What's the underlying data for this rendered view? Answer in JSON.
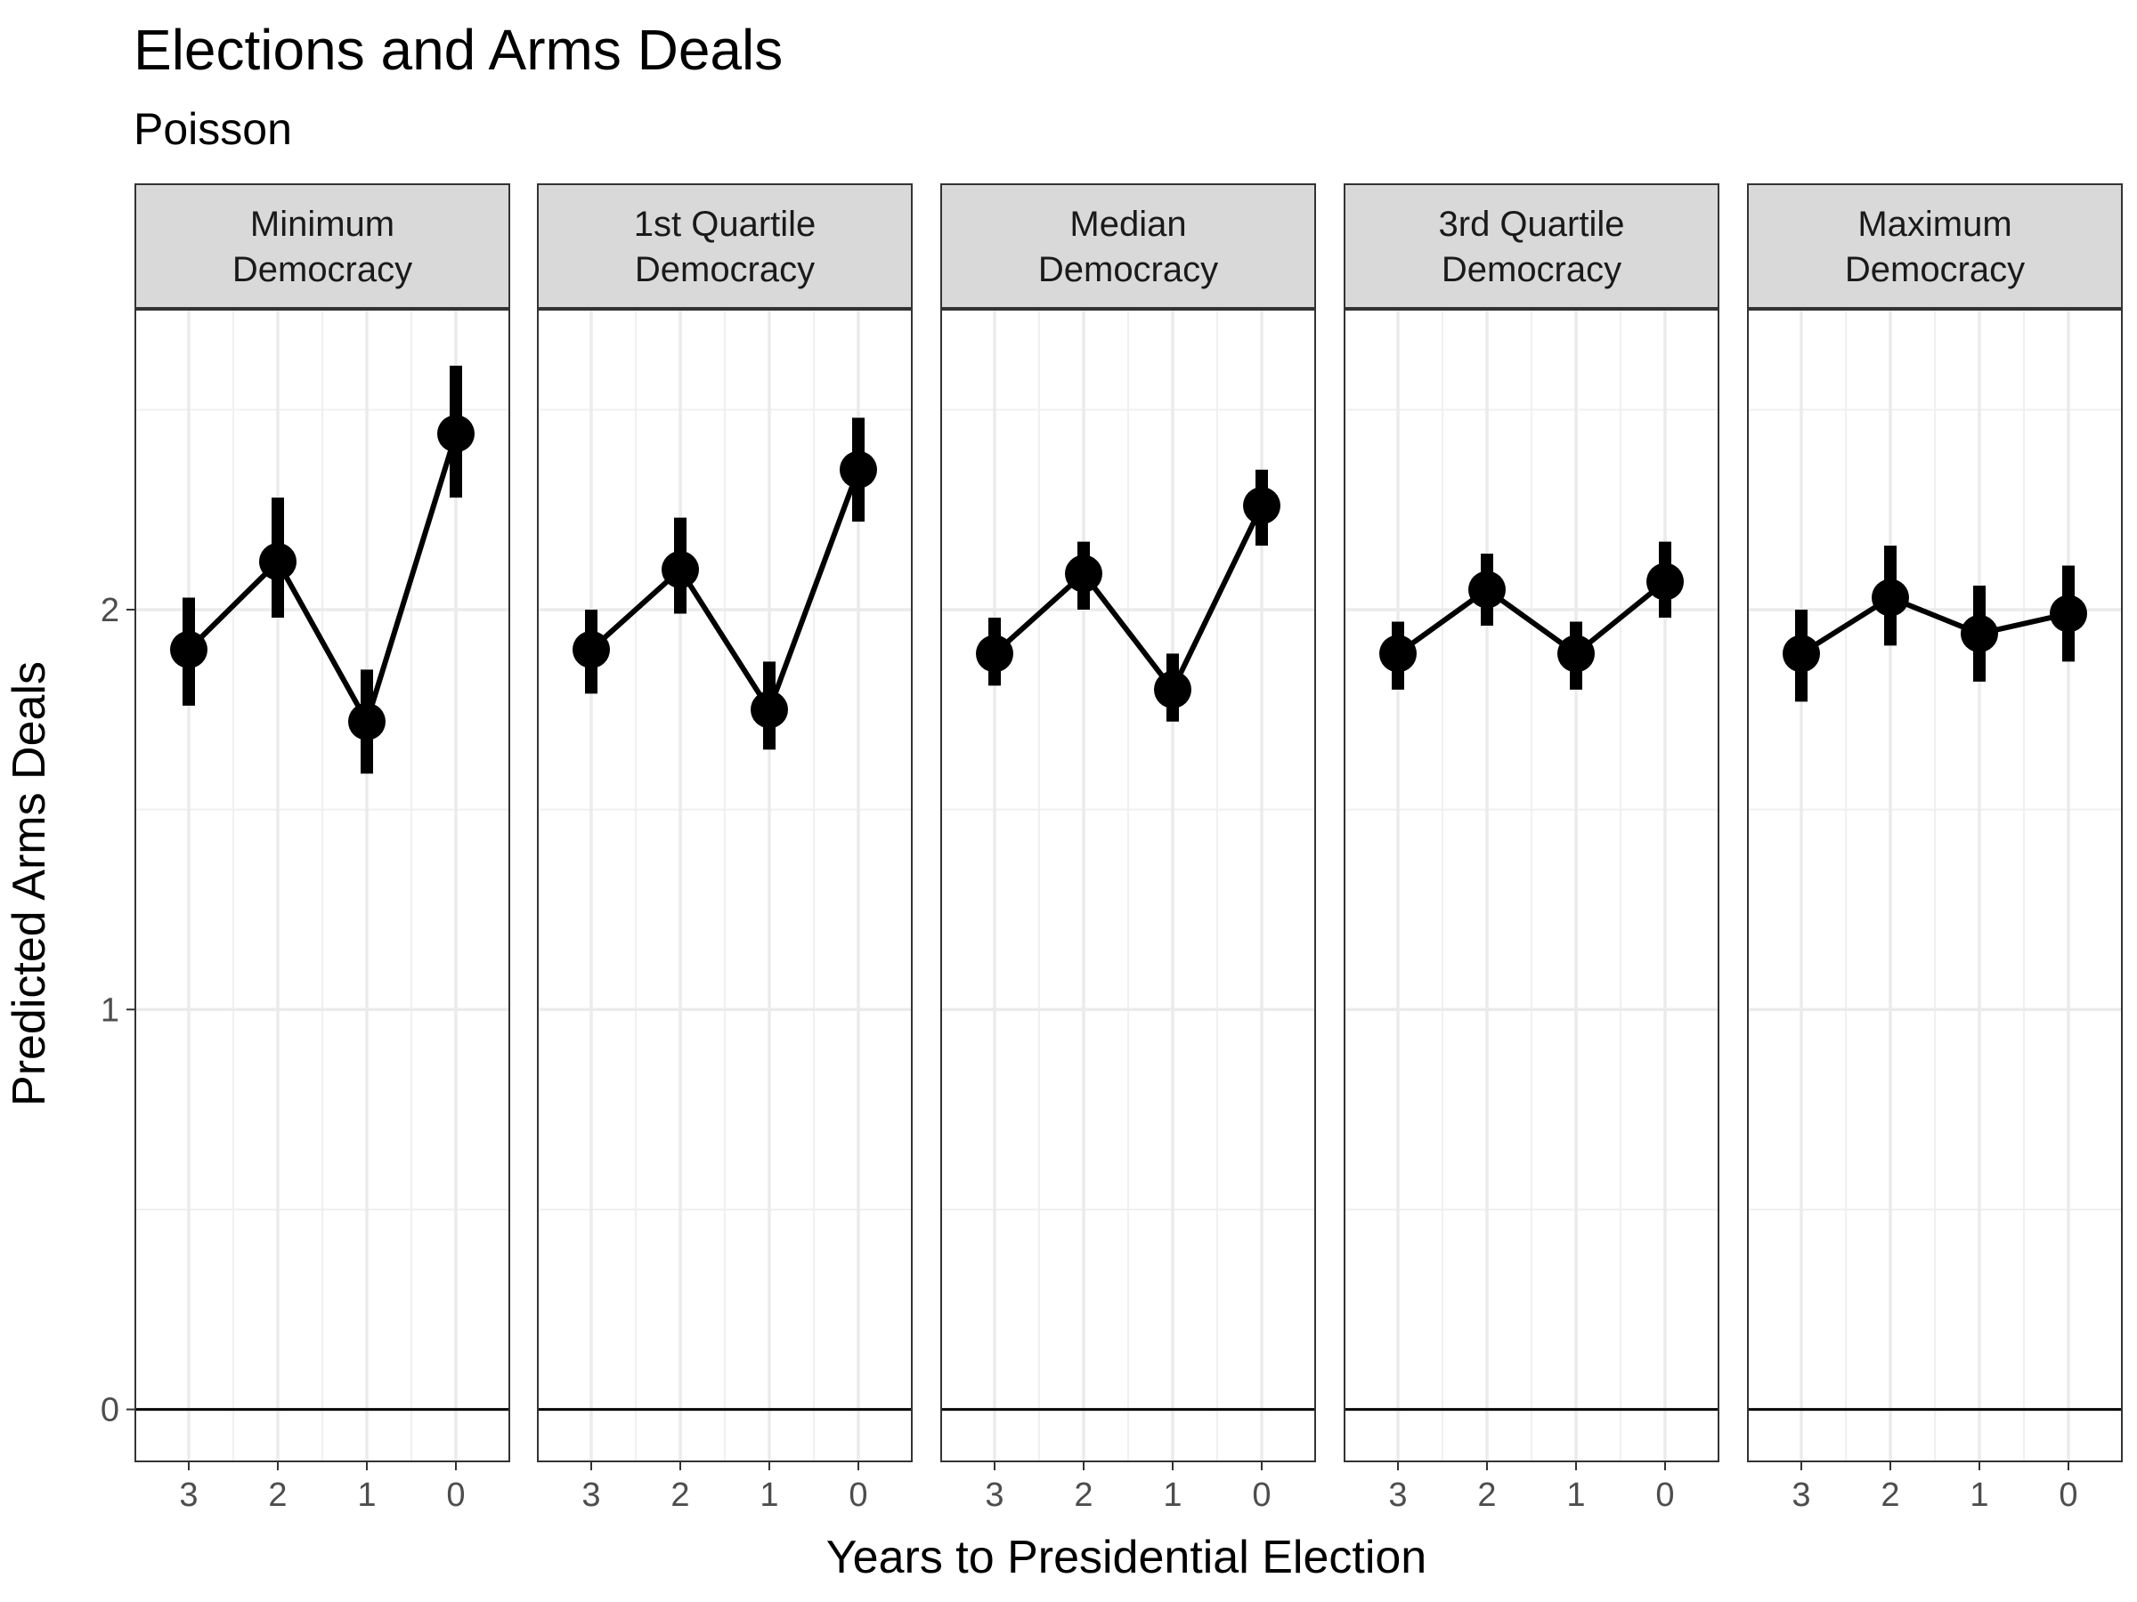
{
  "chart_data": {
    "type": "line",
    "title": "Elections and Arms Deals",
    "subtitle": "Poisson",
    "xlabel": "Years to Presidential Election",
    "ylabel": "Predicted Arms Deals",
    "x_categories": [
      "3",
      "2",
      "1",
      "0"
    ],
    "y_ticks": [
      0,
      1,
      2
    ],
    "ylim": [
      -0.13,
      2.75
    ],
    "reference_line_y": 0,
    "grid": true,
    "panels": [
      {
        "label_line1": "Minimum",
        "label_line2": "Democracy",
        "estimates": [
          1.9,
          2.12,
          1.72,
          2.44
        ],
        "lower": [
          1.76,
          1.98,
          1.59,
          2.28
        ],
        "upper": [
          2.03,
          2.28,
          1.85,
          2.61
        ]
      },
      {
        "label_line1": "1st Quartile",
        "label_line2": "Democracy",
        "estimates": [
          1.9,
          2.1,
          1.75,
          2.35
        ],
        "lower": [
          1.79,
          1.99,
          1.65,
          2.22
        ],
        "upper": [
          2.0,
          2.23,
          1.87,
          2.48
        ]
      },
      {
        "label_line1": "Median",
        "label_line2": "Democracy",
        "estimates": [
          1.89,
          2.09,
          1.8,
          2.26
        ],
        "lower": [
          1.81,
          2.0,
          1.72,
          2.16
        ],
        "upper": [
          1.98,
          2.17,
          1.89,
          2.35
        ]
      },
      {
        "label_line1": "3rd Quartile",
        "label_line2": "Democracy",
        "estimates": [
          1.89,
          2.05,
          1.89,
          2.07
        ],
        "lower": [
          1.8,
          1.96,
          1.8,
          1.98
        ],
        "upper": [
          1.97,
          2.14,
          1.97,
          2.17
        ]
      },
      {
        "label_line1": "Maximum",
        "label_line2": "Democracy",
        "estimates": [
          1.89,
          2.03,
          1.94,
          1.99
        ],
        "lower": [
          1.77,
          1.91,
          1.82,
          1.87
        ],
        "upper": [
          2.0,
          2.16,
          2.06,
          2.11
        ]
      }
    ]
  }
}
